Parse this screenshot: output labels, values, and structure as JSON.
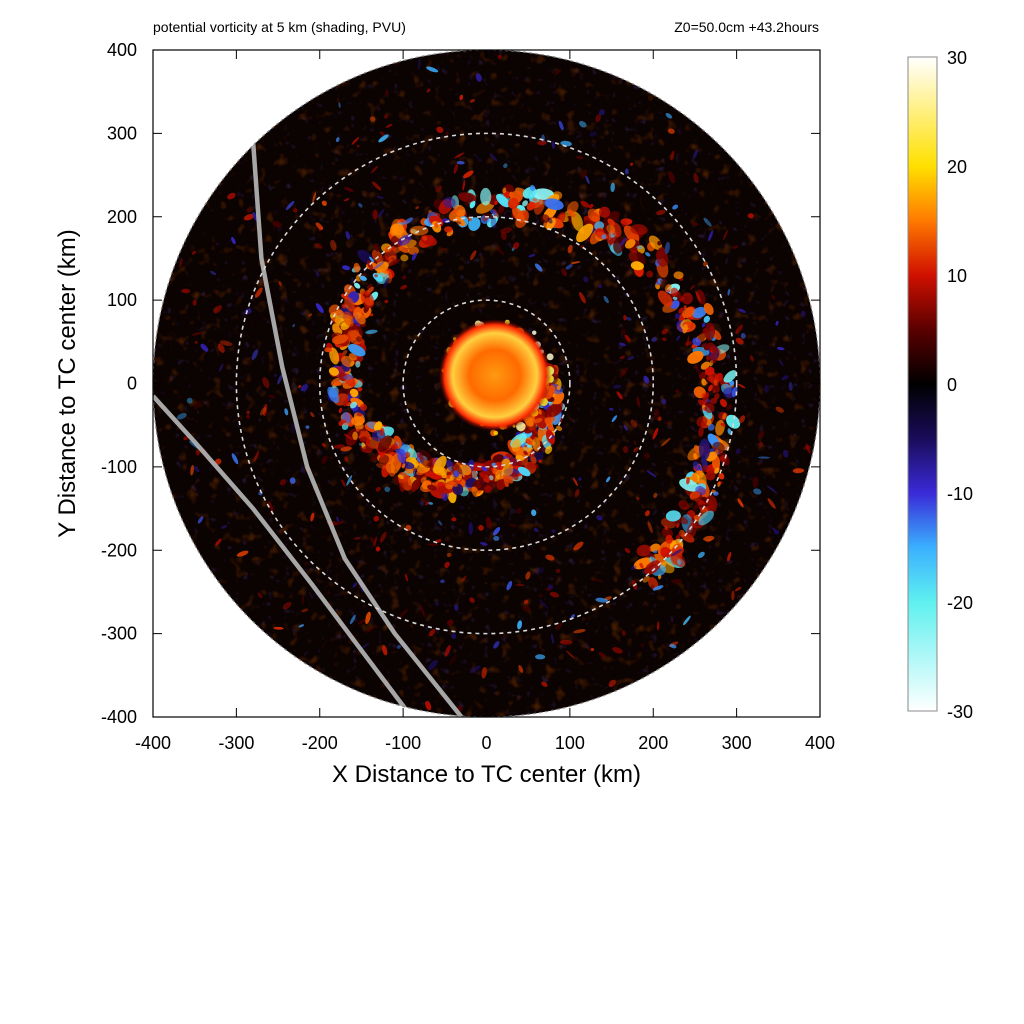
{
  "chart_data": {
    "type": "heatmap",
    "title": "potential vorticity at 5 km (shading, PVU)",
    "info_label": "Z0=50.0cm  +43.2hours",
    "xlabel": "X Distance to TC center (km)",
    "ylabel": "Y Distance to TC center (km)",
    "xlim": [
      -400,
      400
    ],
    "ylim": [
      -400,
      400
    ],
    "x_ticks": [
      -400,
      -300,
      -200,
      -100,
      0,
      100,
      200,
      300,
      400
    ],
    "y_ticks": [
      -400,
      -300,
      -200,
      -100,
      0,
      100,
      200,
      300,
      400
    ],
    "x_tick_labels": [
      "-400",
      "-300",
      "-200",
      "-100",
      "0",
      "100",
      "200",
      "300",
      "400"
    ],
    "y_tick_labels": [
      "-400",
      "-300",
      "-200",
      "-100",
      "0",
      "100",
      "200",
      "300",
      "400"
    ],
    "domain_radius_km": 400,
    "range_rings_km": [
      100,
      200,
      300
    ],
    "colorbar": {
      "range": [
        -30,
        30
      ],
      "ticks": [
        30,
        20,
        10,
        0,
        -10,
        -20,
        -30
      ],
      "tick_labels": [
        "30",
        "20",
        "10",
        "0",
        "-10",
        "-20",
        "-30"
      ],
      "stops": [
        {
          "value": -30,
          "color": "#ffffff"
        },
        {
          "value": -20,
          "color": "#5ff0f0"
        },
        {
          "value": -15,
          "color": "#3ab0ff"
        },
        {
          "value": -10,
          "color": "#3a2ad8"
        },
        {
          "value": -5,
          "color": "#1a0c5a"
        },
        {
          "value": 0,
          "color": "#000000"
        },
        {
          "value": 5,
          "color": "#5a0000"
        },
        {
          "value": 10,
          "color": "#d01000"
        },
        {
          "value": 15,
          "color": "#ff7a00"
        },
        {
          "value": 20,
          "color": "#ffe000"
        },
        {
          "value": 30,
          "color": "#ffffff"
        }
      ]
    },
    "tracks": [
      {
        "name": "track-1",
        "points": [
          [
            -280,
            290
          ],
          [
            -270,
            150
          ],
          [
            -245,
            20
          ],
          [
            -215,
            -100
          ],
          [
            -170,
            -210
          ],
          [
            -110,
            -300
          ],
          [
            -30,
            -400
          ]
        ]
      },
      {
        "name": "track-2",
        "points": [
          [
            -400,
            -15
          ],
          [
            -350,
            -70
          ],
          [
            -280,
            -150
          ],
          [
            -210,
            -240
          ],
          [
            -150,
            -320
          ],
          [
            -90,
            -400
          ]
        ]
      }
    ],
    "features": {
      "core": {
        "center": [
          10,
          10
        ],
        "radius_km": 50,
        "peak_pvu": 25
      },
      "spiral_band": {
        "pvu": 14
      }
    }
  }
}
